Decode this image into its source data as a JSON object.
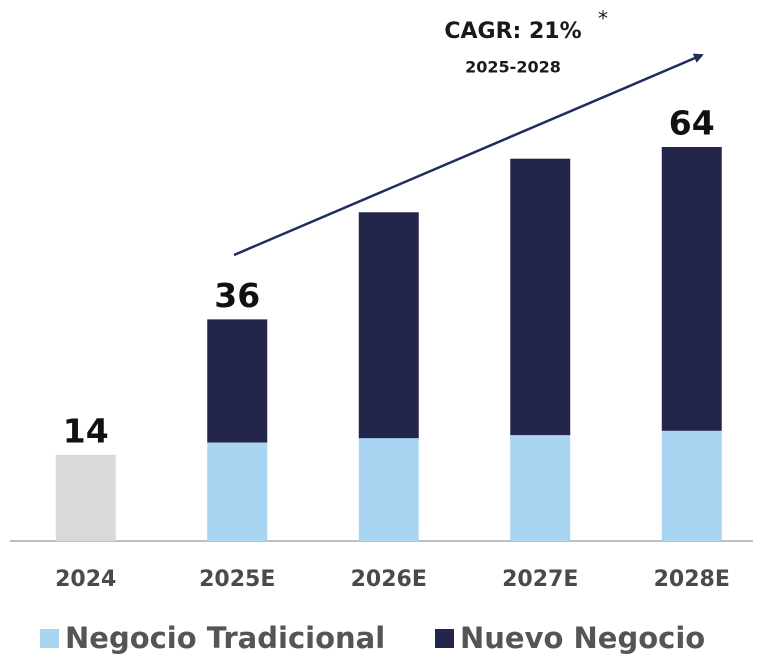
{
  "chart_data": {
    "type": "stacked_bar",
    "categories": [
      "2024",
      "2025E",
      "2026E",
      "2027E",
      "2028E"
    ],
    "series": [
      {
        "name": "Negocio Tradicional",
        "color": "#a9d4f2",
        "colors": [
          "#d9d9d9",
          "#a9d4f2",
          "#a9d4f2",
          "#a9d4f2",
          "#a9d4f2"
        ],
        "values": [
          14,
          16,
          16.7,
          17.2,
          17.9
        ]
      },
      {
        "name": "Nuevo Negocio",
        "color": "#23254b",
        "values": [
          null,
          20,
          36.7,
          44.9,
          46.1
        ]
      }
    ],
    "totals": [
      14,
      36,
      null,
      null,
      64
    ],
    "ylim": [
      0,
      64
    ],
    "annotation": {
      "title": "CAGR: 21%",
      "mark": "*",
      "period": "2025-2028"
    }
  }
}
